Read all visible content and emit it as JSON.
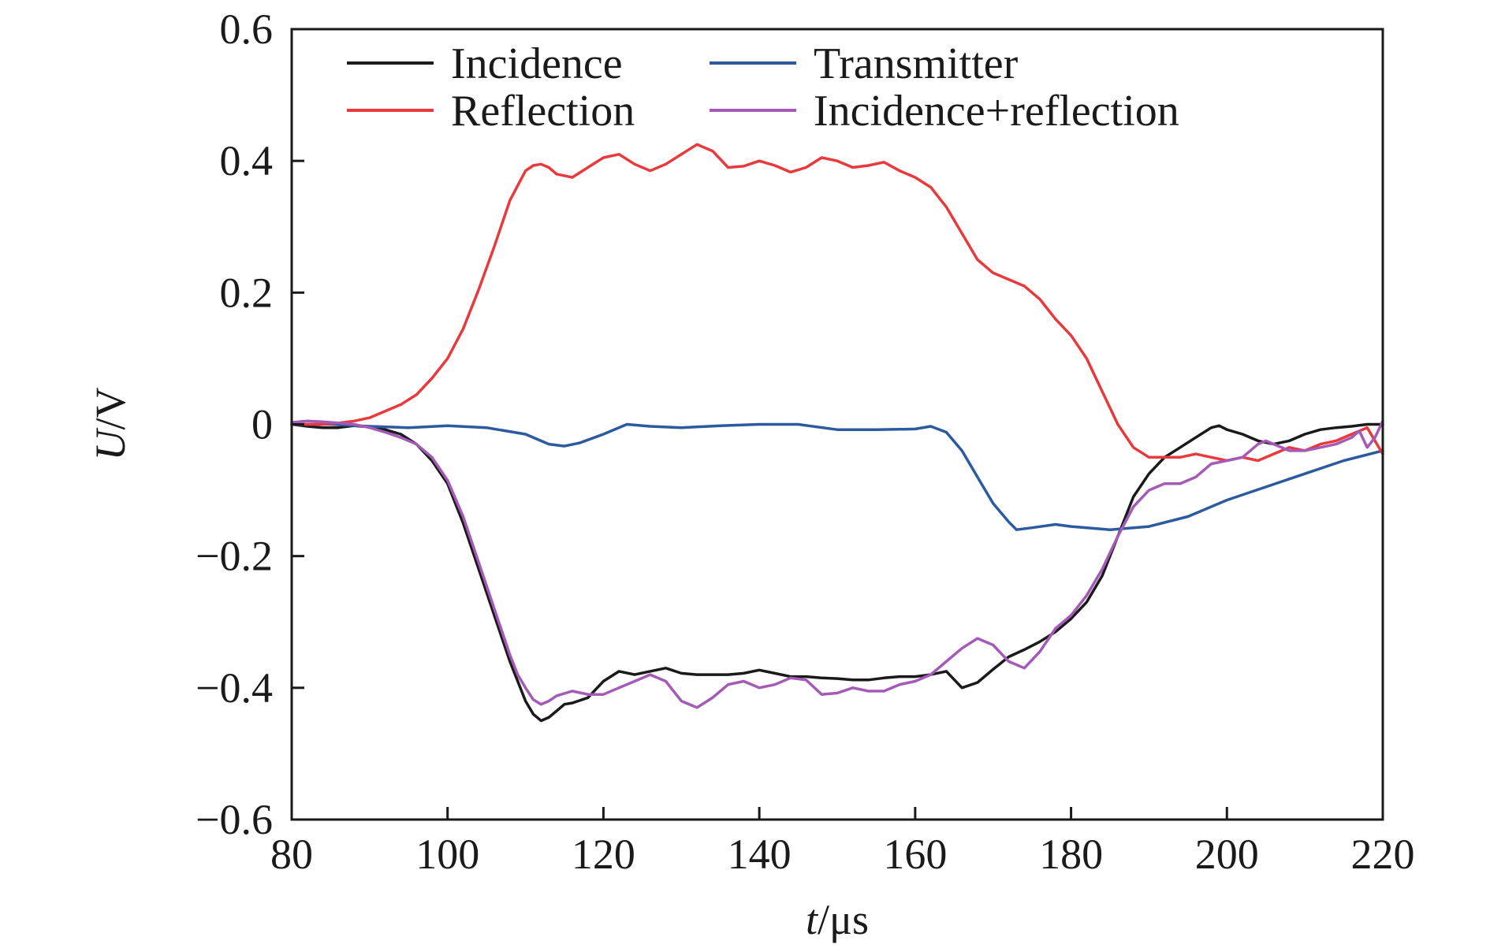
{
  "chart_data": {
    "type": "line",
    "xlabel": {
      "italic": "t",
      "rest": "/μs"
    },
    "ylabel": {
      "italic": "U",
      "rest": "/V"
    },
    "xlim": [
      80,
      220
    ],
    "ylim": [
      -0.6,
      0.6
    ],
    "xticks": [
      80,
      100,
      120,
      140,
      160,
      180,
      200,
      220
    ],
    "xtick_labels": [
      "80",
      "100",
      "120",
      "140",
      "160",
      "180",
      "200",
      "220"
    ],
    "yticks": [
      0.6,
      0.4,
      0.2,
      0,
      -0.2,
      -0.4,
      -0.6
    ],
    "ytick_labels": [
      "0.6",
      "0.4",
      "0.2",
      "0",
      "−0.2",
      "−0.4",
      "−0.6"
    ],
    "grid": false,
    "legend_position": "top-left",
    "series": [
      {
        "name": "Incidence",
        "color": "#1a1a1a",
        "x": [
          80,
          82,
          84,
          86,
          88,
          90,
          92,
          94,
          96,
          98,
          100,
          102,
          104,
          106,
          108,
          109,
          110,
          111,
          112,
          113,
          114,
          115,
          116,
          118,
          120,
          122,
          124,
          126,
          128,
          130,
          132,
          134,
          136,
          138,
          140,
          142,
          144,
          146,
          148,
          150,
          152,
          154,
          156,
          158,
          160,
          162,
          164,
          166,
          168,
          170,
          172,
          174,
          176,
          178,
          180,
          182,
          184,
          186,
          188,
          190,
          192,
          194,
          196,
          198,
          199,
          200,
          202,
          204,
          206,
          208,
          210,
          212,
          214,
          216,
          218,
          220
        ],
        "y": [
          0,
          -0.003,
          -0.005,
          -0.005,
          -0.002,
          -0.004,
          -0.008,
          -0.015,
          -0.03,
          -0.055,
          -0.09,
          -0.15,
          -0.22,
          -0.29,
          -0.36,
          -0.39,
          -0.42,
          -0.44,
          -0.45,
          -0.445,
          -0.435,
          -0.425,
          -0.423,
          -0.415,
          -0.39,
          -0.375,
          -0.38,
          -0.375,
          -0.37,
          -0.378,
          -0.38,
          -0.38,
          -0.38,
          -0.378,
          -0.373,
          -0.378,
          -0.383,
          -0.383,
          -0.385,
          -0.386,
          -0.388,
          -0.388,
          -0.385,
          -0.383,
          -0.383,
          -0.38,
          -0.375,
          -0.4,
          -0.392,
          -0.372,
          -0.353,
          -0.342,
          -0.33,
          -0.315,
          -0.295,
          -0.27,
          -0.23,
          -0.17,
          -0.11,
          -0.075,
          -0.05,
          -0.035,
          -0.02,
          -0.005,
          -0.002,
          -0.008,
          -0.015,
          -0.025,
          -0.03,
          -0.025,
          -0.015,
          -0.008,
          -0.005,
          -0.003,
          0,
          0
        ]
      },
      {
        "name": "Transmitter",
        "color": "#2c5aa0",
        "x": [
          80,
          85,
          90,
          95,
          100,
          105,
          110,
          113,
          115,
          117,
          120,
          123,
          126,
          130,
          135,
          140,
          145,
          150,
          155,
          160,
          162,
          164,
          166,
          168,
          170,
          172,
          173,
          175,
          178,
          180,
          185,
          190,
          195,
          200,
          205,
          210,
          215,
          220
        ],
        "y": [
          0,
          0,
          -0.003,
          -0.005,
          -0.002,
          -0.005,
          -0.015,
          -0.03,
          -0.033,
          -0.028,
          -0.015,
          0,
          -0.003,
          -0.005,
          -0.002,
          0,
          0,
          -0.008,
          -0.008,
          -0.007,
          -0.003,
          -0.012,
          -0.04,
          -0.08,
          -0.12,
          -0.148,
          -0.16,
          -0.157,
          -0.152,
          -0.155,
          -0.16,
          -0.155,
          -0.14,
          -0.115,
          -0.095,
          -0.075,
          -0.055,
          -0.04
        ]
      },
      {
        "name": "Reflection",
        "color": "#e8393c",
        "x": [
          80,
          82,
          84,
          86,
          88,
          90,
          92,
          94,
          96,
          98,
          100,
          102,
          104,
          106,
          108,
          110,
          111,
          112,
          113,
          114,
          116,
          118,
          120,
          122,
          124,
          126,
          128,
          130,
          132,
          134,
          136,
          138,
          140,
          142,
          144,
          146,
          148,
          150,
          152,
          154,
          156,
          158,
          160,
          162,
          164,
          166,
          168,
          170,
          172,
          174,
          176,
          178,
          180,
          182,
          184,
          186,
          188,
          190,
          192,
          194,
          196,
          198,
          200,
          202,
          204,
          206,
          208,
          210,
          212,
          214,
          216,
          218,
          220
        ],
        "y": [
          0,
          0,
          0,
          0.002,
          0.005,
          0.01,
          0.02,
          0.03,
          0.045,
          0.07,
          0.1,
          0.145,
          0.205,
          0.27,
          0.34,
          0.385,
          0.393,
          0.395,
          0.39,
          0.38,
          0.375,
          0.39,
          0.405,
          0.41,
          0.395,
          0.385,
          0.395,
          0.41,
          0.425,
          0.415,
          0.39,
          0.392,
          0.4,
          0.393,
          0.383,
          0.39,
          0.405,
          0.4,
          0.39,
          0.393,
          0.398,
          0.385,
          0.375,
          0.36,
          0.33,
          0.29,
          0.25,
          0.23,
          0.22,
          0.21,
          0.19,
          0.16,
          0.135,
          0.1,
          0.05,
          0,
          -0.035,
          -0.05,
          -0.05,
          -0.05,
          -0.045,
          -0.05,
          -0.055,
          -0.05,
          -0.055,
          -0.045,
          -0.035,
          -0.04,
          -0.03,
          -0.025,
          -0.015,
          -0.005,
          -0.045
        ]
      },
      {
        "name": "Incidence+reflection",
        "color": "#a45bb8",
        "x": [
          80,
          82,
          84,
          86,
          88,
          90,
          92,
          94,
          96,
          98,
          100,
          102,
          104,
          106,
          108,
          109,
          110,
          111,
          112,
          113,
          114,
          116,
          118,
          120,
          122,
          124,
          126,
          128,
          130,
          132,
          134,
          136,
          138,
          140,
          142,
          144,
          146,
          148,
          150,
          152,
          154,
          156,
          158,
          160,
          162,
          164,
          166,
          168,
          170,
          172,
          174,
          176,
          178,
          180,
          182,
          184,
          186,
          188,
          190,
          192,
          194,
          196,
          198,
          200,
          202,
          204,
          205,
          206,
          208,
          210,
          212,
          214,
          216,
          217,
          218,
          219,
          220
        ],
        "y": [
          0.003,
          0.005,
          0.004,
          0.002,
          0,
          -0.005,
          -0.012,
          -0.02,
          -0.03,
          -0.05,
          -0.085,
          -0.14,
          -0.21,
          -0.28,
          -0.35,
          -0.38,
          -0.4,
          -0.418,
          -0.425,
          -0.42,
          -0.412,
          -0.405,
          -0.41,
          -0.41,
          -0.4,
          -0.39,
          -0.38,
          -0.39,
          -0.42,
          -0.43,
          -0.415,
          -0.395,
          -0.39,
          -0.4,
          -0.395,
          -0.385,
          -0.388,
          -0.41,
          -0.408,
          -0.4,
          -0.405,
          -0.405,
          -0.395,
          -0.39,
          -0.38,
          -0.36,
          -0.34,
          -0.325,
          -0.335,
          -0.36,
          -0.37,
          -0.345,
          -0.31,
          -0.29,
          -0.26,
          -0.22,
          -0.17,
          -0.125,
          -0.1,
          -0.09,
          -0.09,
          -0.08,
          -0.06,
          -0.055,
          -0.05,
          -0.03,
          -0.025,
          -0.03,
          -0.04,
          -0.04,
          -0.035,
          -0.03,
          -0.02,
          -0.01,
          -0.035,
          -0.02,
          0.005
        ]
      }
    ]
  }
}
